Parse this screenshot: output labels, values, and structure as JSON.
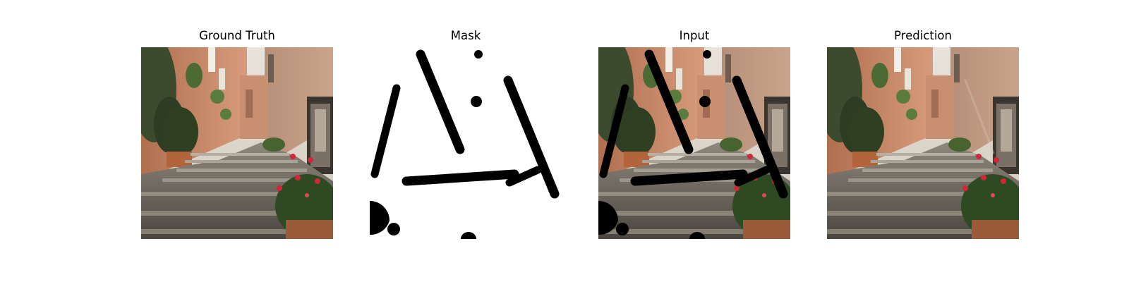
{
  "figure": {
    "panels": [
      {
        "title": "Ground Truth"
      },
      {
        "title": "Mask"
      },
      {
        "title": "Input"
      },
      {
        "title": "Prediction"
      }
    ]
  }
}
